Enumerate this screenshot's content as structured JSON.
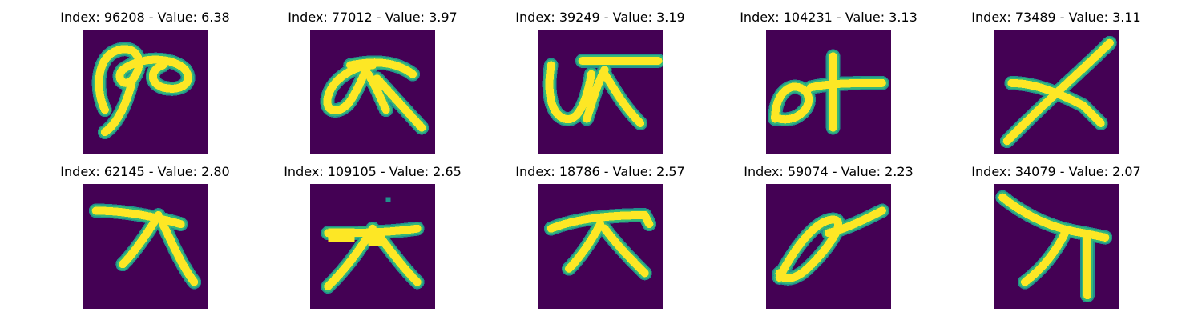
{
  "colors": {
    "background": "#440154",
    "stroke_core": "#fde725",
    "stroke_edge": "#35b779",
    "stroke_halo": "#21918c"
  },
  "panels": [
    {
      "title": "Index: 96208 - Value: 6.38",
      "index": 96208,
      "value": 6.38
    },
    {
      "title": "Index: 77012 - Value: 3.97",
      "index": 77012,
      "value": 3.97
    },
    {
      "title": "Index: 39249 - Value: 3.19",
      "index": 39249,
      "value": 3.19
    },
    {
      "title": "Index: 104231 - Value: 3.13",
      "index": 104231,
      "value": 3.13
    },
    {
      "title": "Index: 73489 - Value: 3.11",
      "index": 73489,
      "value": 3.11
    },
    {
      "title": "Index: 62145 - Value: 2.80",
      "index": 62145,
      "value": 2.8
    },
    {
      "title": "Index: 109105 - Value: 2.65",
      "index": 109105,
      "value": 2.65
    },
    {
      "title": "Index: 18786 - Value: 2.57",
      "index": 18786,
      "value": 2.57
    },
    {
      "title": "Index: 59074 - Value: 2.23",
      "index": 59074,
      "value": 2.23
    },
    {
      "title": "Index: 34079 - Value: 2.07",
      "index": 34079,
      "value": 2.07
    }
  ]
}
